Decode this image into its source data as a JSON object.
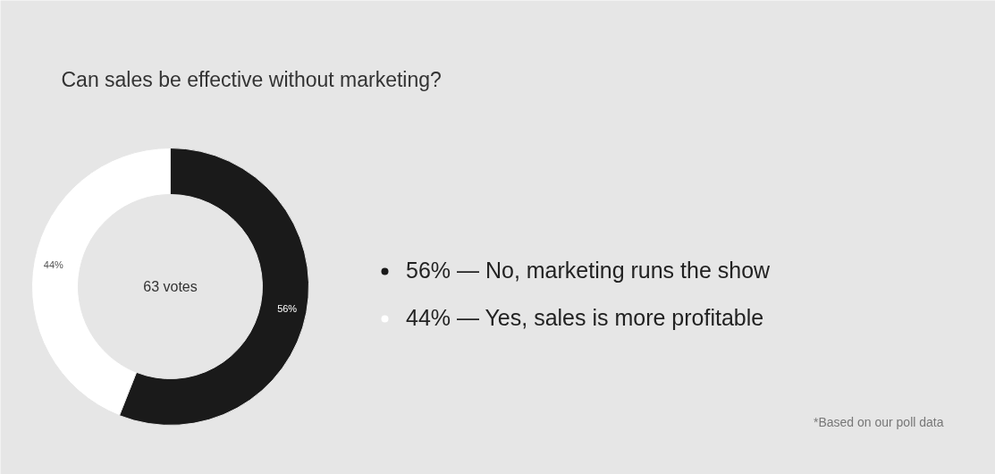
{
  "chart_data": {
    "type": "donut",
    "title": "Can sales be effective without marketing?",
    "categories": [
      "56% — No, marketing runs the show",
      "44% — Yes, sales is more profitable"
    ],
    "values": [
      56,
      44
    ],
    "colors": [
      "#1a1a1a",
      "#ffffff"
    ],
    "value_labels": [
      "56%",
      "44%"
    ],
    "legend": "right",
    "annotations": [
      "63 votes",
      "*Based on our poll data"
    ]
  }
}
